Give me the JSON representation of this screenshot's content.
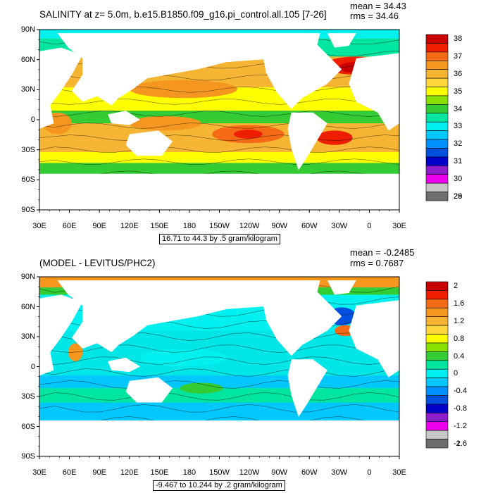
{
  "colors": {
    "land": "#ffffff",
    "frame": "#000000",
    "contour": "#000000"
  },
  "panels": [
    {
      "title_left": "SALINITY at z=   5.0m, b.e15.B1850.f09_g16.pi_control.all.105 [7-26]",
      "mean_label": "mean = 34.43",
      "rms_label": "rms = 34.46",
      "range_label": "16.71 to 44.3 by .5 gram/kilogram",
      "lat_ticks": [
        "90N",
        "60N",
        "30N",
        "0",
        "30S",
        "60S",
        "90S"
      ],
      "lon_ticks": [
        "30E",
        "60E",
        "90E",
        "120E",
        "150E",
        "180",
        "150W",
        "120W",
        "90W",
        "60W",
        "30W",
        "0",
        "30E"
      ],
      "colorbar_labels": [
        "38",
        "37",
        "36",
        "35",
        "34",
        "33",
        "32",
        "31",
        "30",
        "29",
        "28"
      ],
      "colorbar_colors": [
        "#c80000",
        "#f01e00",
        "#f56a14",
        "#f5961e",
        "#f5b432",
        "#ffd73c",
        "#ffff00",
        "#88e000",
        "#33cc33",
        "#00e6a0",
        "#00f0f0",
        "#00c8ff",
        "#0090ff",
        "#0050e0",
        "#0000c8",
        "#8c1ccc",
        "#ee00ee",
        "#c8c8c8",
        "#6e6e6e"
      ]
    },
    {
      "title_left": "(MODEL - LEVITUS/PHC2)",
      "mean_label": "mean = -0.2485",
      "rms_label": "rms = 0.7687",
      "range_label": "-9.467 to 10.244 by .2 gram/kilogram",
      "lat_ticks": [
        "90N",
        "60N",
        "30N",
        "0",
        "30S",
        "60S",
        "90S"
      ],
      "lon_ticks": [
        "30E",
        "60E",
        "90E",
        "120E",
        "150E",
        "180",
        "150W",
        "120W",
        "90W",
        "60W",
        "30W",
        "0",
        "30E"
      ],
      "colorbar_labels": [
        "2",
        "1.6",
        "1.2",
        "0.8",
        "0.4",
        "0",
        "-0.4",
        "-0.8",
        "-1.2",
        "-1.6",
        "-2"
      ],
      "colorbar_colors": [
        "#c80000",
        "#f01e00",
        "#f56a14",
        "#f5961e",
        "#f5b432",
        "#ffd73c",
        "#ffff00",
        "#88e000",
        "#33cc33",
        "#00e6a0",
        "#00f0f0",
        "#00c8ff",
        "#0090ff",
        "#0050e0",
        "#0000c8",
        "#8c1ccc",
        "#ee00ee",
        "#c8c8c8",
        "#6e6e6e"
      ]
    }
  ]
}
